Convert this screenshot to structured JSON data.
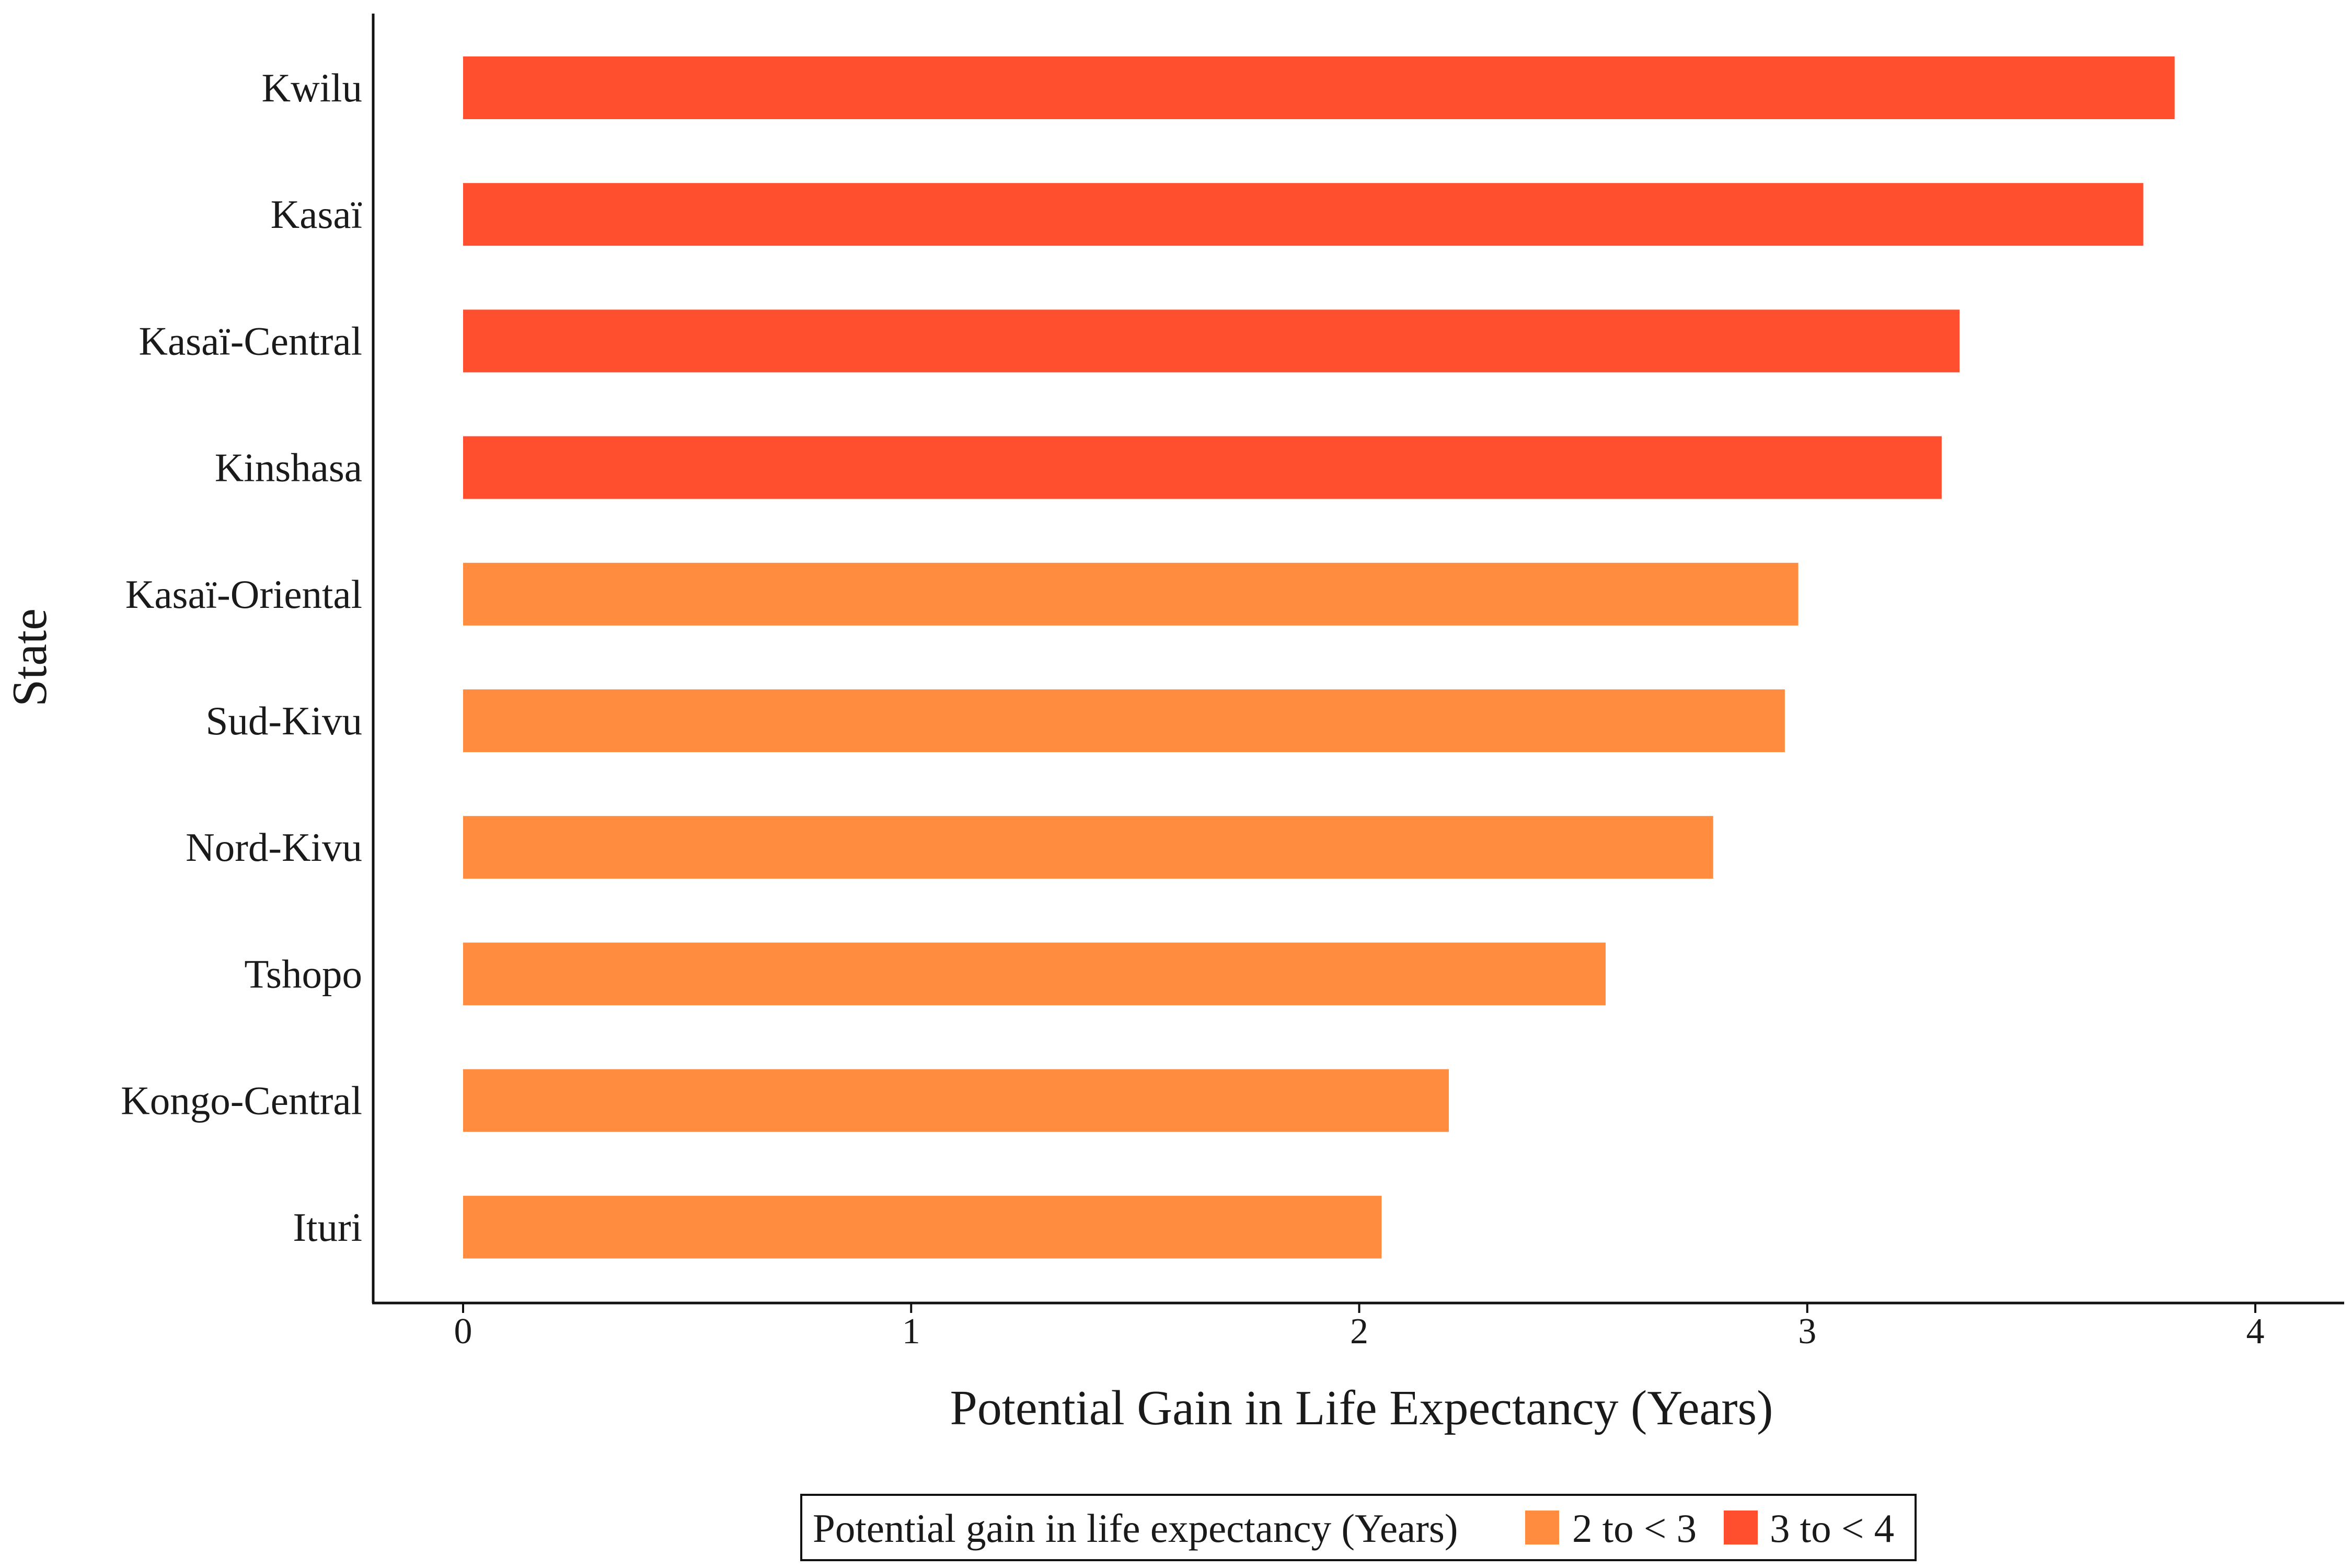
{
  "chart_data": {
    "type": "bar",
    "orientation": "horizontal",
    "xlabel": "Potential Gain in Life Expectancy (Years)",
    "ylabel": "State",
    "xlim": [
      0,
      4
    ],
    "xticks": [
      0,
      1,
      2,
      3,
      4
    ],
    "grid": false,
    "categories": [
      "Kwilu",
      "Kasaï",
      "Kasaï-Central",
      "Kinshasa",
      "Kasaï-Oriental",
      "Sud-Kivu",
      "Nord-Kivu",
      "Tshopo",
      "Kongo-Central",
      "Ituri"
    ],
    "values": [
      3.82,
      3.75,
      3.34,
      3.3,
      2.98,
      2.95,
      2.79,
      2.55,
      2.2,
      2.05
    ],
    "groups": [
      "3 to < 4",
      "3 to < 4",
      "3 to < 4",
      "3 to < 4",
      "2 to < 3",
      "2 to < 3",
      "2 to < 3",
      "2 to < 3",
      "2 to < 3",
      "2 to < 3"
    ],
    "legend": {
      "title": "Potential gain in life expectancy (Years)",
      "position": "bottom",
      "items": [
        {
          "label": "2 to < 3",
          "color": "#FF8C3F"
        },
        {
          "label": "3 to < 4",
          "color": "#FF4F2F"
        }
      ]
    }
  }
}
